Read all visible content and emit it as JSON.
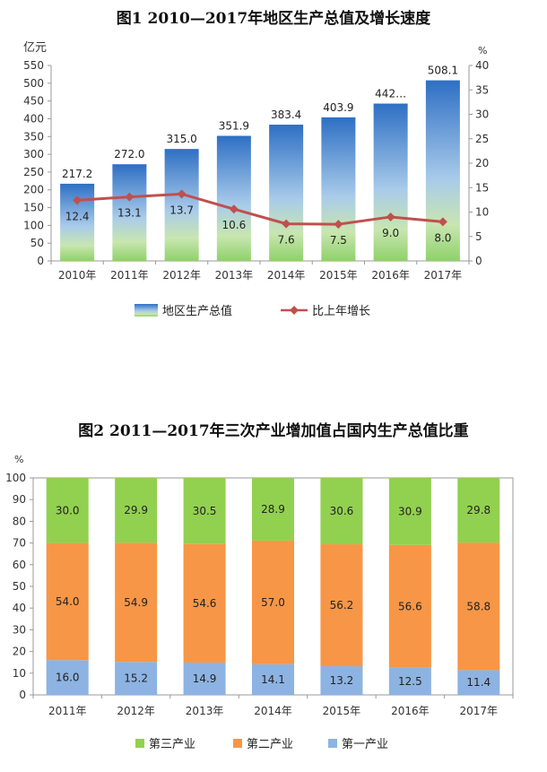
{
  "chart_data": [
    {
      "type": "bar",
      "title": "图1  2010—2017年地区生产总值及增长速度",
      "ylabel": "亿元",
      "y2label": "%",
      "categories": [
        "2010年",
        "2011年",
        "2012年",
        "2013年",
        "2014年",
        "2015年",
        "2016年",
        "2017年"
      ],
      "ylim": [
        0,
        550
      ],
      "yticks": [
        0,
        50,
        100,
        150,
        200,
        250,
        300,
        350,
        400,
        450,
        500,
        550
      ],
      "y2lim": [
        0,
        40
      ],
      "y2ticks": [
        0,
        5,
        10,
        15,
        20,
        25,
        30,
        35,
        40
      ],
      "series": [
        {
          "name": "地区生产总值",
          "type": "bar",
          "axis": "left",
          "values": [
            217.2,
            272.0,
            315.0,
            351.9,
            383.4,
            403.9,
            442.7,
            508.1
          ],
          "labels": [
            "217.2",
            "272.0",
            "315.0",
            "351.9",
            "383.4",
            "403.9",
            "442…",
            "508.1"
          ]
        },
        {
          "name": "比上年增长",
          "type": "line",
          "axis": "right",
          "values": [
            12.4,
            13.1,
            13.7,
            10.6,
            7.6,
            7.5,
            9.0,
            8.0
          ],
          "labels": [
            "12.4",
            "13.1",
            "13.7",
            "10.6",
            "7.6",
            "7.5",
            "9.0",
            "8.0"
          ]
        }
      ],
      "legend": "bottom",
      "colors": {
        "bar_top": "#2e6fc4",
        "bar_mid": "#a9cbea",
        "bar_bottom": "#8fd16a",
        "line": "#c0504d"
      }
    },
    {
      "type": "bar",
      "stacked": true,
      "title": "图2    2011—2017年三次产业增加值占国内生产总值比重",
      "ylabel": "%",
      "categories": [
        "2011年",
        "2012年",
        "2013年",
        "2014年",
        "2015年",
        "2016年",
        "2017年"
      ],
      "ylim": [
        0,
        100
      ],
      "yticks": [
        0,
        10,
        20,
        30,
        40,
        50,
        60,
        70,
        80,
        90,
        100
      ],
      "series": [
        {
          "name": "第一产业",
          "values": [
            16.0,
            15.2,
            14.9,
            14.1,
            13.2,
            12.5,
            11.4
          ]
        },
        {
          "name": "第二产业",
          "values": [
            54.0,
            54.9,
            54.6,
            57.0,
            56.2,
            56.6,
            58.8
          ]
        },
        {
          "name": "第三产业",
          "values": [
            30.0,
            29.9,
            30.5,
            28.9,
            30.6,
            30.9,
            29.8
          ]
        }
      ],
      "legend_order": [
        "第三产业",
        "第二产业",
        "第一产业"
      ],
      "legend": "bottom",
      "colors": {
        "第一产业": "#8db3e2",
        "第二产业": "#f79646",
        "第三产业": "#92d050"
      }
    }
  ]
}
